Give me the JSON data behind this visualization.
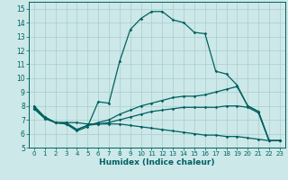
{
  "xlabel": "Humidex (Indice chaleur)",
  "bg_color": "#cce8e8",
  "grid_color": "#aacccc",
  "line_color": "#006060",
  "xlim": [
    -0.5,
    23.5
  ],
  "ylim": [
    5,
    15.5
  ],
  "xticks": [
    0,
    1,
    2,
    3,
    4,
    5,
    6,
    7,
    8,
    9,
    10,
    11,
    12,
    13,
    14,
    15,
    16,
    17,
    18,
    19,
    20,
    21,
    22,
    23
  ],
  "yticks": [
    5,
    6,
    7,
    8,
    9,
    10,
    11,
    12,
    13,
    14,
    15
  ],
  "lines": [
    {
      "x": [
        0,
        1,
        2,
        3,
        4,
        5,
        6,
        7,
        8,
        9,
        10,
        11,
        12,
        13,
        14,
        15,
        16,
        17,
        18,
        19,
        20,
        21,
        22,
        23
      ],
      "y": [
        8.0,
        7.2,
        6.8,
        6.7,
        6.2,
        6.5,
        8.3,
        8.2,
        11.2,
        13.5,
        14.3,
        14.8,
        14.8,
        14.2,
        14.0,
        13.3,
        13.2,
        10.5,
        10.3,
        9.5,
        8.0,
        7.6,
        5.5,
        5.5
      ]
    },
    {
      "x": [
        0,
        1,
        2,
        3,
        4,
        5,
        6,
        7,
        8,
        9,
        10,
        11,
        12,
        13,
        14,
        15,
        16,
        17,
        18,
        19,
        20,
        21,
        22,
        23
      ],
      "y": [
        7.8,
        7.1,
        6.8,
        6.8,
        6.3,
        6.6,
        6.8,
        7.0,
        7.4,
        7.7,
        8.0,
        8.2,
        8.4,
        8.6,
        8.7,
        8.7,
        8.8,
        9.0,
        9.2,
        9.4,
        8.0,
        7.6,
        5.5,
        5.5
      ]
    },
    {
      "x": [
        0,
        1,
        2,
        3,
        4,
        5,
        6,
        7,
        8,
        9,
        10,
        11,
        12,
        13,
        14,
        15,
        16,
        17,
        18,
        19,
        20,
        21,
        22,
        23
      ],
      "y": [
        7.8,
        7.1,
        6.8,
        6.7,
        6.3,
        6.6,
        6.7,
        6.8,
        7.0,
        7.2,
        7.4,
        7.6,
        7.7,
        7.8,
        7.9,
        7.9,
        7.9,
        7.9,
        8.0,
        8.0,
        7.9,
        7.5,
        5.5,
        5.5
      ]
    },
    {
      "x": [
        0,
        1,
        2,
        3,
        4,
        5,
        6,
        7,
        8,
        9,
        10,
        11,
        12,
        13,
        14,
        15,
        16,
        17,
        18,
        19,
        20,
        21,
        22,
        23
      ],
      "y": [
        7.9,
        7.2,
        6.8,
        6.8,
        6.8,
        6.7,
        6.7,
        6.7,
        6.7,
        6.6,
        6.5,
        6.4,
        6.3,
        6.2,
        6.1,
        6.0,
        5.9,
        5.9,
        5.8,
        5.8,
        5.7,
        5.6,
        5.5,
        5.5
      ]
    }
  ]
}
